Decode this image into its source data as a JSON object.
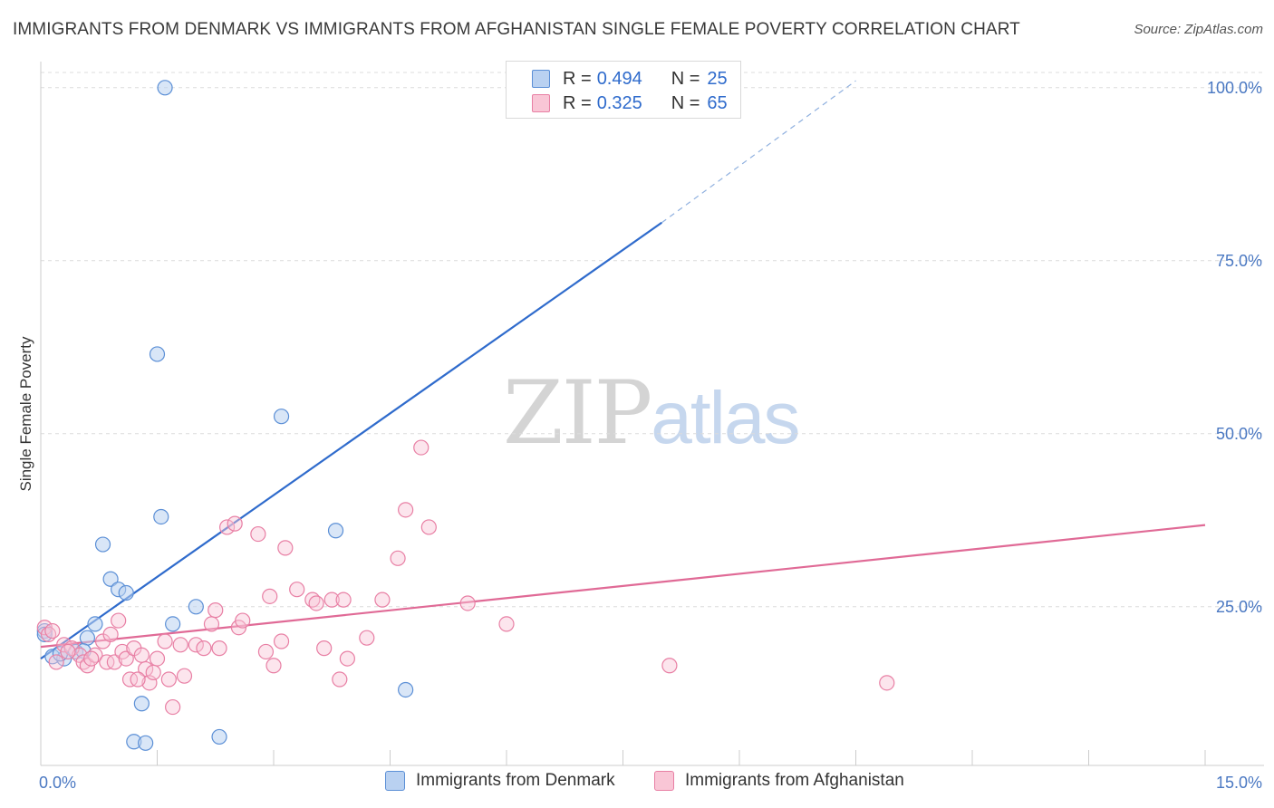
{
  "title": "IMMIGRANTS FROM DENMARK VS IMMIGRANTS FROM AFGHANISTAN SINGLE FEMALE POVERTY CORRELATION CHART",
  "source": "Source: ZipAtlas.com",
  "watermark": {
    "zip": "ZIP",
    "atlas": "atlas"
  },
  "legend": {
    "r_label": "R =",
    "n_label": "N =",
    "rows": [
      {
        "r": "0.494",
        "n": "25"
      },
      {
        "r": "0.325",
        "n": "65"
      }
    ]
  },
  "chart_data": {
    "type": "scatter",
    "ylabel": "Single Female Poverty",
    "xlim": [
      0,
      15
    ],
    "ylim": [
      0,
      100
    ],
    "x_tick_labels": {
      "min": "0.0%",
      "max": "15.0%"
    },
    "y_tick_labels": [
      "25.0%",
      "50.0%",
      "75.0%",
      "100.0%"
    ],
    "y_tick_values": [
      25,
      50,
      75,
      100
    ],
    "grid": true,
    "colors": {
      "denmark": "#5b8fd6",
      "afghanistan": "#e87fa4",
      "denmark_line": "#2f6bcc",
      "afghanistan_line": "#e06a96"
    },
    "series": [
      {
        "name": "Immigrants from Denmark",
        "key": "denmark",
        "points": [
          [
            0.05,
            21.5
          ],
          [
            0.15,
            17.8
          ],
          [
            0.3,
            17.5
          ],
          [
            0.45,
            18.5
          ],
          [
            0.6,
            20.5
          ],
          [
            0.7,
            22.5
          ],
          [
            0.8,
            34.0
          ],
          [
            0.9,
            29.0
          ],
          [
            1.0,
            27.5
          ],
          [
            1.1,
            27.0
          ],
          [
            1.3,
            11.0
          ],
          [
            1.5,
            61.5
          ],
          [
            1.55,
            38.0
          ],
          [
            1.6,
            100.0
          ],
          [
            1.7,
            22.5
          ],
          [
            1.2,
            5.5
          ],
          [
            1.35,
            5.3
          ],
          [
            2.0,
            25.0
          ],
          [
            2.3,
            6.2
          ],
          [
            3.1,
            52.5
          ],
          [
            3.8,
            36.0
          ],
          [
            4.7,
            13.0
          ],
          [
            0.25,
            18.2
          ],
          [
            0.55,
            18.6
          ],
          [
            0.05,
            21.0
          ]
        ],
        "trend": {
          "x": [
            0.0,
            8.0
          ],
          "y": [
            17.5,
            80.5
          ],
          "dashed_to": [
            10.5,
            101.0
          ]
        }
      },
      {
        "name": "Immigrants from Afghanistan",
        "key": "afghanistan",
        "points": [
          [
            0.05,
            22.0
          ],
          [
            0.1,
            21.0
          ],
          [
            0.2,
            17.0
          ],
          [
            0.3,
            19.5
          ],
          [
            0.4,
            19.0
          ],
          [
            0.5,
            18.0
          ],
          [
            0.55,
            17.0
          ],
          [
            0.6,
            16.5
          ],
          [
            0.7,
            18.0
          ],
          [
            0.8,
            20.0
          ],
          [
            0.85,
            17.0
          ],
          [
            0.9,
            21.0
          ],
          [
            0.95,
            17.0
          ],
          [
            1.0,
            23.0
          ],
          [
            1.05,
            18.5
          ],
          [
            1.1,
            17.5
          ],
          [
            1.15,
            14.5
          ],
          [
            1.2,
            19.0
          ],
          [
            1.3,
            18.0
          ],
          [
            1.35,
            16.0
          ],
          [
            1.4,
            14.0
          ],
          [
            1.45,
            15.5
          ],
          [
            1.5,
            17.5
          ],
          [
            1.6,
            20.0
          ],
          [
            1.65,
            14.5
          ],
          [
            1.7,
            10.5
          ],
          [
            1.8,
            19.5
          ],
          [
            1.85,
            15.0
          ],
          [
            2.0,
            19.5
          ],
          [
            2.1,
            19.0
          ],
          [
            2.2,
            22.5
          ],
          [
            2.25,
            24.5
          ],
          [
            2.3,
            19.0
          ],
          [
            2.4,
            36.5
          ],
          [
            2.5,
            37.0
          ],
          [
            2.55,
            22.0
          ],
          [
            2.6,
            23.0
          ],
          [
            2.8,
            35.5
          ],
          [
            2.9,
            18.5
          ],
          [
            2.95,
            26.5
          ],
          [
            3.0,
            16.5
          ],
          [
            3.1,
            20.0
          ],
          [
            3.15,
            33.5
          ],
          [
            3.3,
            27.5
          ],
          [
            3.5,
            26.0
          ],
          [
            3.55,
            25.5
          ],
          [
            3.65,
            19.0
          ],
          [
            3.75,
            26.0
          ],
          [
            3.85,
            14.5
          ],
          [
            3.9,
            26.0
          ],
          [
            3.95,
            17.5
          ],
          [
            4.2,
            20.5
          ],
          [
            4.4,
            26.0
          ],
          [
            4.6,
            32.0
          ],
          [
            4.7,
            39.0
          ],
          [
            4.9,
            48.0
          ],
          [
            5.0,
            36.5
          ],
          [
            5.5,
            25.5
          ],
          [
            6.0,
            22.5
          ],
          [
            8.1,
            16.5
          ],
          [
            10.9,
            14.0
          ],
          [
            0.15,
            21.5
          ],
          [
            0.35,
            18.5
          ],
          [
            0.65,
            17.5
          ],
          [
            1.25,
            14.5
          ]
        ],
        "trend": {
          "x": [
            0.0,
            15.0
          ],
          "y": [
            19.2,
            36.8
          ]
        }
      }
    ]
  }
}
